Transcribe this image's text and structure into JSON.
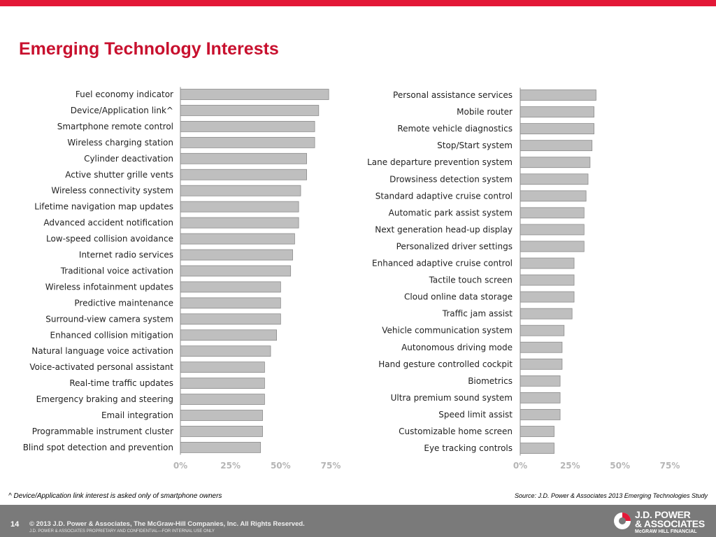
{
  "slide": {
    "title": "Emerging Technology Interests",
    "footnote": "^ Device/Application link interest is asked only of smartphone owners",
    "source": "Source: J.D. Power & Associates 2013 Emerging Technologies Study",
    "slide_number": "14",
    "copyright": "© 2013 J.D. Power & Associates, The McGraw-Hill Companies, Inc. All Rights Reserved.",
    "confidential": "J.D. POWER & ASSOCIATES PROPRIETARY AND CONFIDENTIAL—FOR INTERNAL USE ONLY",
    "logo_line1": "J.D. POWER",
    "logo_line2": "& ASSOCIATES",
    "logo_line3": "McGRAW HILL FINANCIAL"
  },
  "colors": {
    "accent": "#e31837",
    "title": "#c8102e",
    "bar_fill": "#bfbfbf",
    "bar_stroke": "#8c8c8c",
    "footer": "#7a7a7a"
  },
  "chart_data": [
    {
      "type": "bar",
      "orientation": "horizontal",
      "categories": [
        "Fuel economy indicator",
        "Device/Application link^",
        "Smartphone remote control",
        "Wireless charging station",
        "Cylinder deactivation",
        "Active shutter grille vents",
        "Wireless connectivity system",
        "Lifetime navigation map updates",
        "Advanced accident notification",
        "Low-speed collision avoidance",
        "Internet radio services",
        "Traditional voice activation",
        "Wireless infotainment updates",
        "Predictive maintenance",
        "Surround-view camera system",
        "Enhanced collision mitigation",
        "Natural language voice activation",
        "Voice-activated personal assistant",
        "Real-time traffic updates",
        "Emergency braking and steering",
        "Email integration",
        "Programmable instrument cluster",
        "Blind spot detection and prevention"
      ],
      "values": [
        74,
        69,
        67,
        67,
        63,
        63,
        60,
        59,
        59,
        57,
        56,
        55,
        50,
        50,
        50,
        48,
        45,
        42,
        42,
        42,
        41,
        41,
        40
      ],
      "xlim": [
        0,
        75
      ],
      "ticks": [
        "0%",
        "25%",
        "50%",
        "75%"
      ],
      "grid": false
    },
    {
      "type": "bar",
      "orientation": "horizontal",
      "categories": [
        "Personal assistance services",
        "Mobile router",
        "Remote vehicle diagnostics",
        "Stop/Start system",
        "Lane departure prevention system",
        "Drowsiness detection system",
        "Standard adaptive cruise control",
        "Automatic park assist system",
        "Next generation head-up display",
        "Personalized driver settings",
        "Enhanced adaptive cruise control",
        "Tactile touch screen",
        "Cloud online data storage",
        "Traffic jam assist",
        "Vehicle communication system",
        "Autonomous driving mode",
        "Hand gesture controlled cockpit",
        "Biometrics",
        "Ultra premium sound system",
        "Speed limit assist",
        "Customizable home screen",
        "Eye tracking controls"
      ],
      "values": [
        38,
        37,
        37,
        36,
        35,
        34,
        33,
        32,
        32,
        32,
        27,
        27,
        27,
        26,
        22,
        21,
        21,
        20,
        20,
        20,
        17,
        17
      ],
      "xlim": [
        0,
        75
      ],
      "ticks": [
        "0%",
        "25%",
        "50%",
        "75%"
      ],
      "grid": false
    }
  ]
}
